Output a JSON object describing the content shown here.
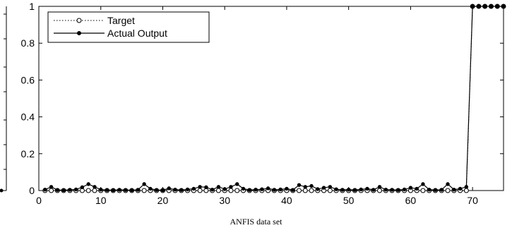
{
  "chart_data": {
    "type": "line",
    "xlim": [
      0,
      75
    ],
    "ylim": [
      0,
      1
    ],
    "xticks": [
      0,
      10,
      20,
      30,
      40,
      50,
      60,
      70
    ],
    "yticks": [
      0,
      0.2,
      0.4,
      0.6,
      0.8,
      1
    ],
    "xtick_labels": [
      "0",
      "10",
      "20",
      "30",
      "40",
      "50",
      "60",
      "70"
    ],
    "ytick_labels": [
      "0",
      "0.2",
      "0.4",
      "0.6",
      "0.8",
      "1"
    ],
    "legend_position": "top-left",
    "grid": false,
    "x": [
      1,
      2,
      3,
      4,
      5,
      6,
      7,
      8,
      9,
      10,
      11,
      12,
      13,
      14,
      15,
      16,
      17,
      18,
      19,
      20,
      21,
      22,
      23,
      24,
      25,
      26,
      27,
      28,
      29,
      30,
      31,
      32,
      33,
      34,
      35,
      36,
      37,
      38,
      39,
      40,
      41,
      42,
      43,
      44,
      45,
      46,
      47,
      48,
      49,
      50,
      51,
      52,
      53,
      54,
      55,
      56,
      57,
      58,
      59,
      60,
      61,
      62,
      63,
      64,
      65,
      66,
      67,
      68,
      69,
      70,
      71,
      72,
      73,
      74,
      75
    ],
    "series": [
      {
        "name": "Target",
        "style": "dotted-open-circle",
        "color": "#000000",
        "values": [
          0,
          0,
          0,
          0,
          0,
          0,
          0,
          0,
          0,
          0,
          0,
          0,
          0,
          0,
          0,
          0,
          0,
          0,
          0,
          0,
          0,
          0,
          0,
          0,
          0,
          0,
          0,
          0,
          0,
          0,
          0,
          0,
          0,
          0,
          0,
          0,
          0,
          0,
          0,
          0,
          0,
          0,
          0,
          0,
          0,
          0,
          0,
          0,
          0,
          0,
          0,
          0,
          0,
          0,
          0,
          0,
          0,
          0,
          0,
          0,
          0,
          0,
          0,
          0,
          0,
          0,
          0,
          0,
          0,
          1,
          1,
          1,
          1,
          1,
          1
        ]
      },
      {
        "name": "Actual Output",
        "style": "solid-filled-dot",
        "color": "#000000",
        "values": [
          0.005,
          0.02,
          0.003,
          0.002,
          0.004,
          0.006,
          0.018,
          0.035,
          0.02,
          0.005,
          0.003,
          0.002,
          0.004,
          0.003,
          0.002,
          0.004,
          0.035,
          0.01,
          0.003,
          0.002,
          0.012,
          0.005,
          0.003,
          0.006,
          0.01,
          0.02,
          0.018,
          0.005,
          0.02,
          0.008,
          0.02,
          0.035,
          0.01,
          0.003,
          0.005,
          0.007,
          0.012,
          0.004,
          0.006,
          0.01,
          0.003,
          0.03,
          0.02,
          0.025,
          0.008,
          0.015,
          0.02,
          0.007,
          0.004,
          0.005,
          0.003,
          0.006,
          0.01,
          0.004,
          0.02,
          0.005,
          0.004,
          0.003,
          0.006,
          0.015,
          0.01,
          0.035,
          0.005,
          0.003,
          0.004,
          0.035,
          0.005,
          0.01,
          0.02,
          1,
          1,
          1,
          1,
          1,
          1
        ]
      }
    ]
  },
  "caption": "ANFIS data set"
}
